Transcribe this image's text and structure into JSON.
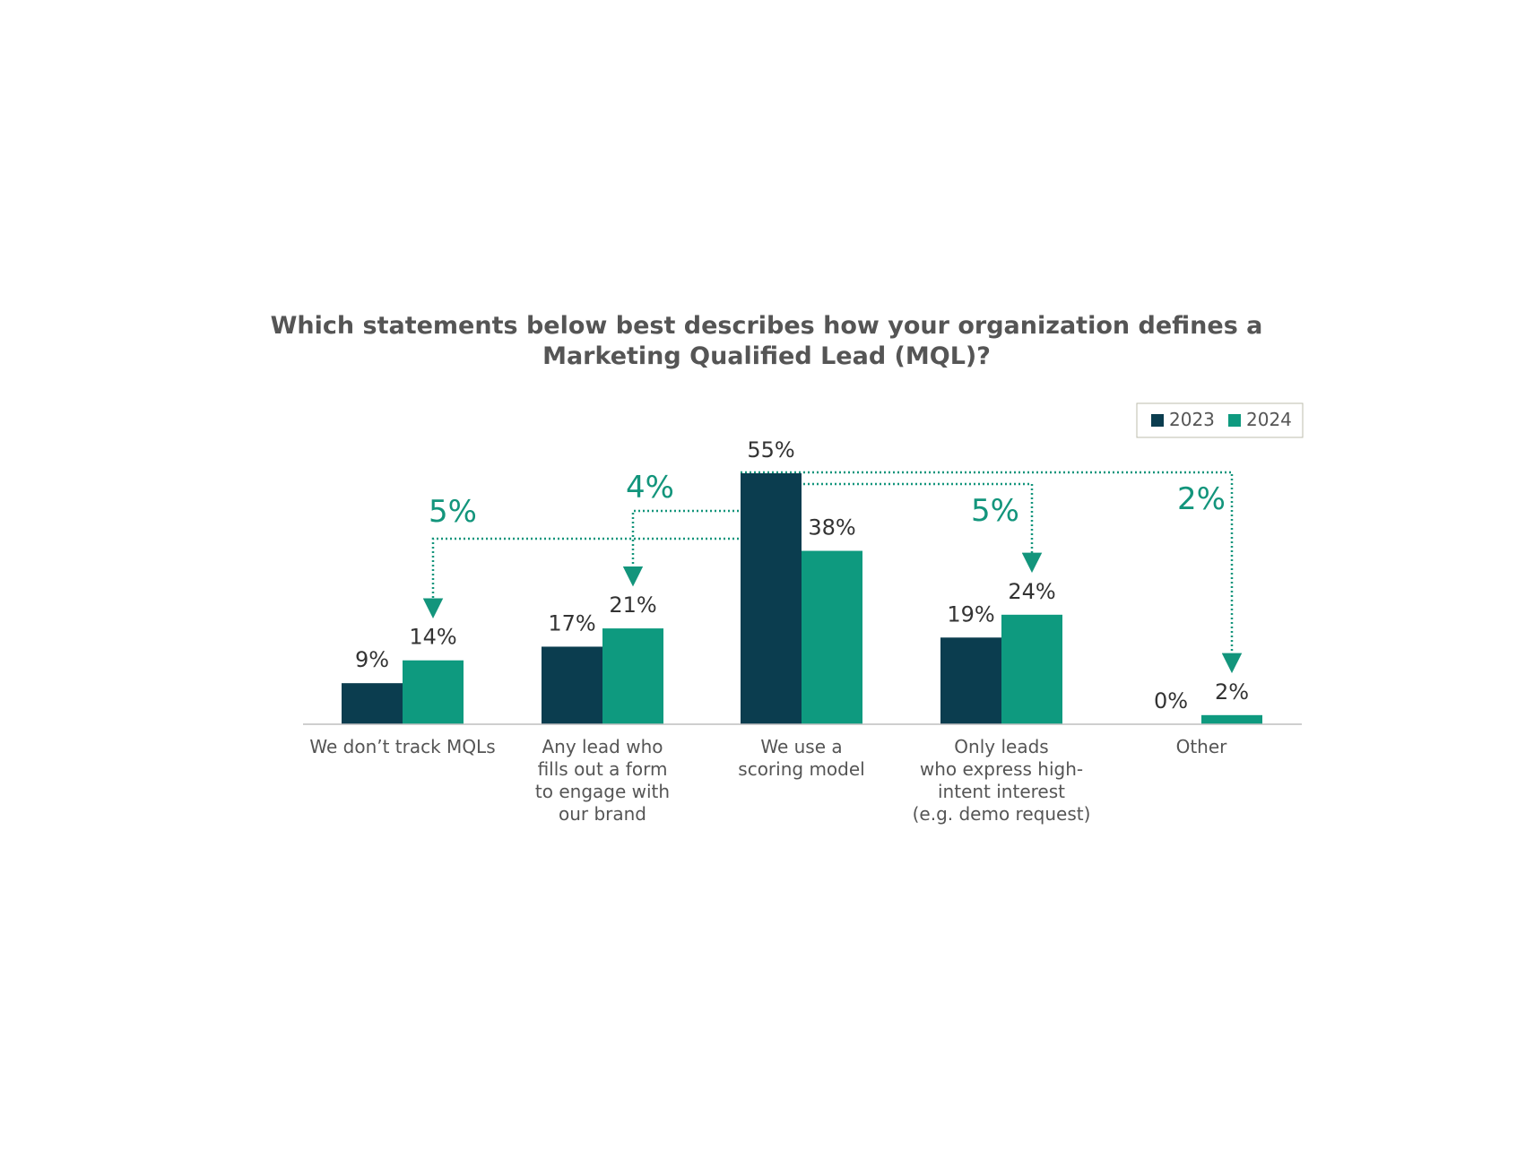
{
  "chart_data": {
    "type": "bar",
    "title_lines": [
      "Which statements below best describes how your organization defines a",
      "Marketing Qualified Lead (MQL)?"
    ],
    "categories": [
      {
        "id": "no-track",
        "lines": [
          "We don’t track MQLs"
        ]
      },
      {
        "id": "any-lead",
        "lines": [
          "Any lead who",
          "fills out a form",
          "to engage with",
          "our brand"
        ]
      },
      {
        "id": "scoring",
        "lines": [
          "We use a",
          "scoring model"
        ]
      },
      {
        "id": "high-intent",
        "lines": [
          "Only leads",
          "who express high-",
          "intent interest",
          "(e.g. demo request)"
        ]
      },
      {
        "id": "other",
        "lines": [
          "Other"
        ]
      }
    ],
    "series": [
      {
        "name": "2023",
        "color": "#0b3d4f",
        "values": [
          9,
          17,
          55,
          19,
          0
        ],
        "labels": [
          "9%",
          "17%",
          "55%",
          "19%",
          "0%"
        ]
      },
      {
        "name": "2024",
        "color": "#0e9a7f",
        "values": [
          14,
          21,
          38,
          24,
          2
        ],
        "labels": [
          "14%",
          "21%",
          "38%",
          "24%",
          "2%"
        ]
      }
    ],
    "ylim": [
      0,
      55
    ],
    "legend_position": "top-right",
    "annotations": [
      {
        "text": "5%",
        "to_category": 0
      },
      {
        "text": "4%",
        "to_category": 1
      },
      {
        "text": "5%",
        "to_category": 3
      },
      {
        "text": "2%",
        "to_category": 4
      }
    ],
    "annotation_color": "#13957c",
    "axis_color": "#bfbfbf"
  }
}
